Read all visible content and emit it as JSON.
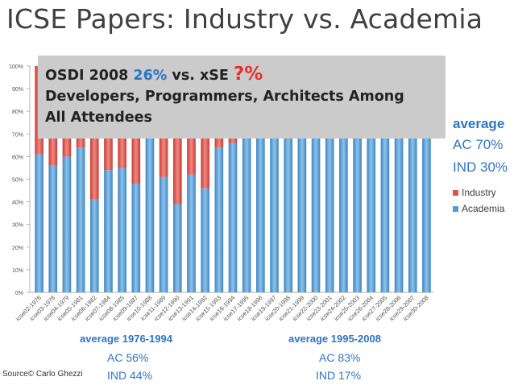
{
  "title": "ICSE Papers: Industry vs. Academia",
  "callout": {
    "line1_prefix": "OSDI 2008",
    "line1_pct": "26%",
    "line1_mid": "vs. xSE",
    "line1_q": "?%",
    "line2": "Developers, Programmers, Architects Among",
    "line3": "All Attendees"
  },
  "colors": {
    "industry": "#e0544c",
    "academia": "#4f9ad4",
    "blue_text": "#2e75c7",
    "red_text": "#e8302a",
    "callout_bg": "#cbcbcb"
  },
  "legend": {
    "average_label": "average",
    "ac": "AC 70%",
    "ind": "IND 30%",
    "industry": "Industry",
    "academia": "Academia"
  },
  "period1": {
    "label": "average 1976-1994",
    "ac": "AC 56%",
    "ind": "IND 44%"
  },
  "period2": {
    "label": "average 1995-2008",
    "ac": "AC 83%",
    "ind": "IND 17%"
  },
  "source": "Source© Carlo Ghezzi",
  "chart_data": {
    "type": "bar",
    "stacked": true,
    "ylim": [
      0,
      100
    ],
    "yticks": [
      "0%",
      "10%",
      "20%",
      "30%",
      "40%",
      "50%",
      "60%",
      "70%",
      "80%",
      "90%",
      "100%"
    ],
    "categories": [
      "icse02-1976",
      "icse03-1978",
      "icse04-1979",
      "icse05-1981",
      "icse06-1982",
      "icse07-1984",
      "icse08-1985",
      "icse09-1987",
      "icse10-1988",
      "icse11-1989",
      "icse12-1990",
      "icse13-1991",
      "icse14-1992",
      "icse15-1993",
      "icse16-1994",
      "icse17-1995",
      "icse18-1996",
      "icse19-1997",
      "icse20-1998",
      "icse21-1999",
      "icse22-2000",
      "icse23-2001",
      "icse24-2002",
      "icse25-2003",
      "icse26-2004",
      "icse27-2005",
      "icse28-2006",
      "icse29-2007",
      "icse30-2008"
    ],
    "series": [
      {
        "name": "Academia",
        "values": [
          61,
          56,
          60,
          64,
          41,
          54,
          55,
          48,
          70,
          51,
          39,
          52,
          46,
          64,
          66,
          75,
          78,
          80,
          82,
          84,
          85,
          83,
          82,
          85,
          86,
          84,
          87,
          86,
          88
        ]
      },
      {
        "name": "Industry",
        "values": [
          39,
          44,
          40,
          36,
          59,
          46,
          45,
          52,
          30,
          49,
          61,
          48,
          54,
          36,
          34,
          25,
          22,
          20,
          18,
          16,
          15,
          17,
          18,
          15,
          14,
          16,
          13,
          14,
          12
        ]
      }
    ],
    "legend": "right",
    "grid": false
  }
}
